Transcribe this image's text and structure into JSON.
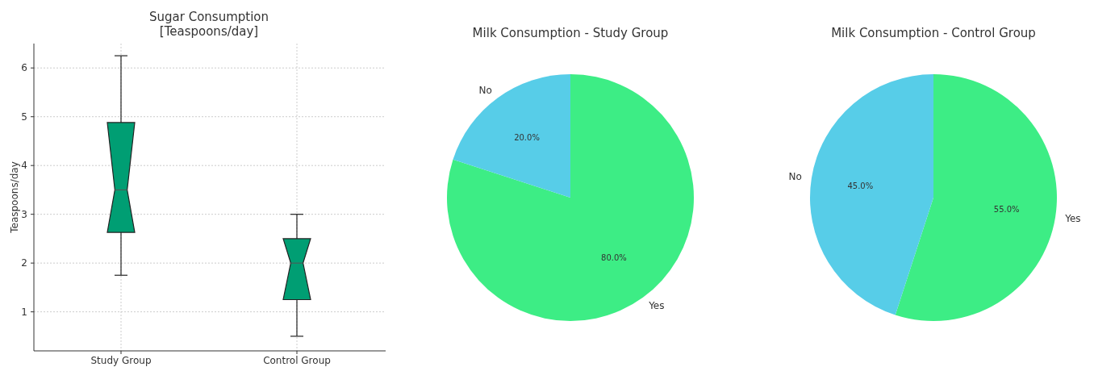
{
  "chart_data": [
    {
      "type": "box",
      "title": "Sugar Consumption\n[Teaspoons/day]",
      "ylabel": "Teaspoons/day",
      "categories": [
        "Study Group",
        "Control Group"
      ],
      "color": "#009e73",
      "boxes": [
        {
          "low": 1.75,
          "q1": 2.63,
          "median": 3.5,
          "q3": 4.88,
          "high": 6.25
        },
        {
          "low": 0.5,
          "q1": 1.25,
          "median": 2.0,
          "q3": 2.5,
          "high": 3.0
        }
      ],
      "ylim": [
        0.2,
        6.5
      ],
      "yticks": [
        1,
        2,
        3,
        4,
        5,
        6
      ],
      "grid": true
    },
    {
      "type": "pie",
      "title": "Milk Consumption - Study Group",
      "categories": [
        "Yes",
        "No"
      ],
      "values": [
        80,
        20
      ],
      "colors": [
        "#3ded85",
        "#57cde8"
      ],
      "value_labels": [
        "80.0%",
        "20.0%"
      ]
    },
    {
      "type": "pie",
      "title": "Milk Consumption - Control Group",
      "categories": [
        "Yes",
        "No"
      ],
      "values": [
        55,
        45
      ],
      "colors": [
        "#3ded85",
        "#57cde8"
      ],
      "value_labels": [
        "55.0%",
        "45.0%"
      ]
    }
  ]
}
